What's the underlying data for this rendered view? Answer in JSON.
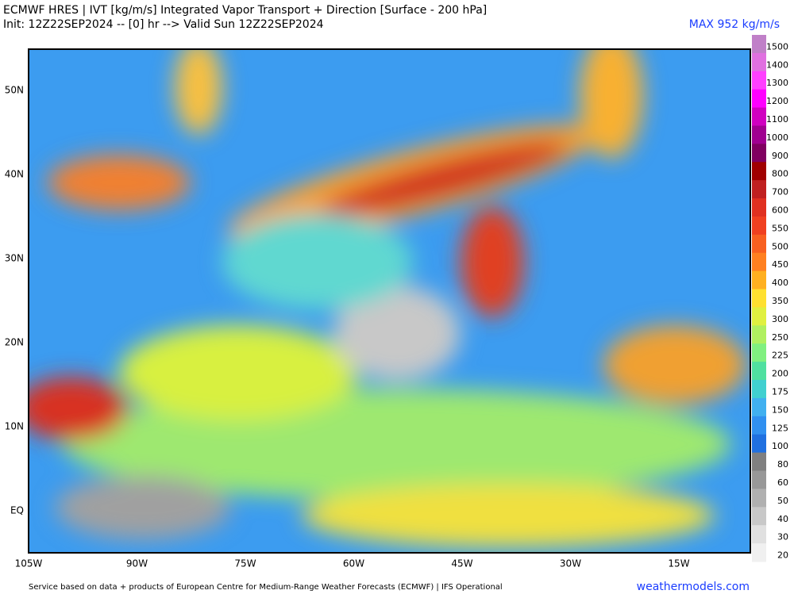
{
  "header": {
    "title": "ECMWF HRES | IVT [kg/m/s] Integrated Vapor Transport + Direction [Surface - 200 hPa]",
    "subtitle": "Init: 12Z22SEP2024 -- [0] hr --> Valid Sun 12Z22SEP2024",
    "max_label": "MAX 952 kg/m/s"
  },
  "map": {
    "lat_labels": [
      "50N",
      "40N",
      "30N",
      "20N",
      "10N",
      "EQ"
    ],
    "lon_labels": [
      "105W",
      "90W",
      "75W",
      "60W",
      "45W",
      "30W",
      "15W"
    ]
  },
  "colorbar": {
    "levels": [
      1500,
      1400,
      1300,
      1200,
      1100,
      1000,
      900,
      800,
      700,
      600,
      550,
      500,
      450,
      400,
      350,
      300,
      250,
      225,
      200,
      175,
      150,
      125,
      100,
      80,
      60,
      50,
      40,
      30,
      20
    ],
    "colors": [
      "#c080c8",
      "#e070e0",
      "#ff40ff",
      "#ff00ff",
      "#d000c0",
      "#a00090",
      "#800060",
      "#a00000",
      "#c02020",
      "#e03020",
      "#f04020",
      "#f86020",
      "#ff8020",
      "#ffb020",
      "#ffe030",
      "#e0f040",
      "#b0f060",
      "#80f080",
      "#50e0a0",
      "#40d0d0",
      "#40b0f0",
      "#3090f0",
      "#2070e0",
      "#808080",
      "#989898",
      "#b0b0b0",
      "#c8c8c8",
      "#e0e0e0",
      "#f0f0f0"
    ]
  },
  "footer": {
    "credit": "Service based on data + products of European Centre for Medium-Range Weather Forecasts (ECMWF) | IFS Operational",
    "site": "weathermodels.com"
  }
}
